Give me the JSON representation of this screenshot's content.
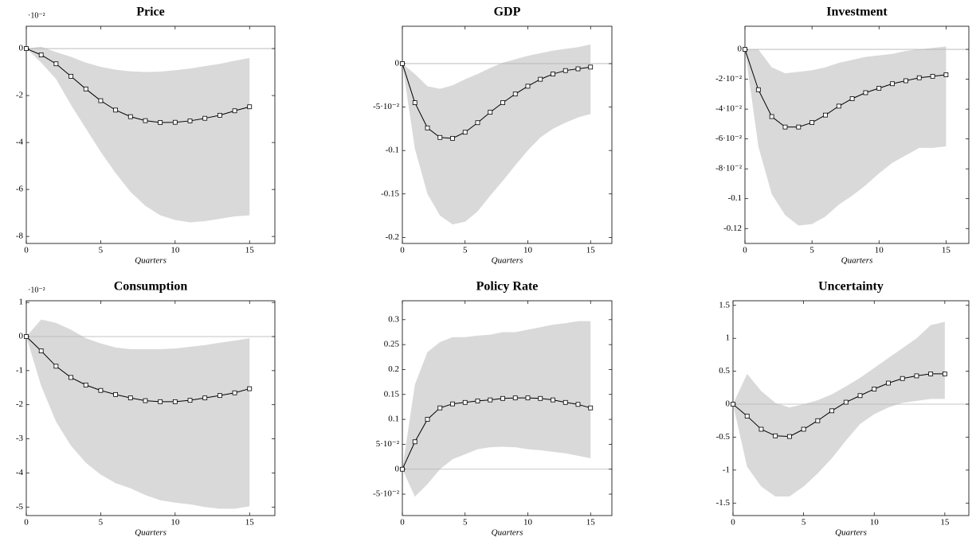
{
  "chart_data": [
    {
      "type": "line",
      "title": "Price",
      "xlabel": "Quarters",
      "y_multiplier": "·10⁻²",
      "x": [
        0,
        1,
        2,
        3,
        4,
        5,
        6,
        7,
        8,
        9,
        10,
        11,
        12,
        13,
        14,
        15
      ],
      "values": [
        0,
        -0.27,
        -0.65,
        -1.18,
        -1.72,
        -2.22,
        -2.62,
        -2.9,
        -3.07,
        -3.15,
        -3.14,
        -3.08,
        -2.97,
        -2.84,
        -2.65,
        -2.48
      ],
      "upper": [
        0,
        0.08,
        -0.15,
        -0.35,
        -0.6,
        -0.78,
        -0.9,
        -0.97,
        -1.0,
        -0.98,
        -0.92,
        -0.85,
        -0.75,
        -0.65,
        -0.52,
        -0.4
      ],
      "lower": [
        0,
        -0.6,
        -1.3,
        -2.4,
        -3.4,
        -4.4,
        -5.3,
        -6.1,
        -6.7,
        -7.1,
        -7.3,
        -7.4,
        -7.35,
        -7.25,
        -7.15,
        -7.1
      ],
      "color": "#000000",
      "band_color": "#d9d9d9",
      "reference_line": 0,
      "xlim": [
        0,
        16.7
      ],
      "xticks": [
        0,
        5,
        10,
        15
      ],
      "ylim": [
        -8.3,
        0.95
      ],
      "yticks": [
        0,
        -2,
        -4,
        -6,
        -8
      ]
    },
    {
      "type": "line",
      "title": "GDP",
      "xlabel": "Quarters",
      "x": [
        0,
        1,
        2,
        3,
        4,
        5,
        6,
        7,
        8,
        9,
        10,
        11,
        12,
        13,
        14,
        15
      ],
      "values": [
        0,
        -0.045,
        -0.074,
        -0.085,
        -0.086,
        -0.079,
        -0.068,
        -0.056,
        -0.045,
        -0.035,
        -0.026,
        -0.018,
        -0.012,
        -0.008,
        -0.006,
        -0.004
      ],
      "upper": [
        0,
        -0.012,
        -0.026,
        -0.029,
        -0.025,
        -0.018,
        -0.012,
        -0.005,
        0.001,
        0.005,
        0.009,
        0.012,
        0.015,
        0.017,
        0.019,
        0.022
      ],
      "lower": [
        0,
        -0.098,
        -0.15,
        -0.175,
        -0.185,
        -0.182,
        -0.17,
        -0.152,
        -0.135,
        -0.117,
        -0.1,
        -0.085,
        -0.075,
        -0.068,
        -0.062,
        -0.058
      ],
      "color": "#000000",
      "band_color": "#d9d9d9",
      "reference_line": 0,
      "xlim": [
        0,
        16.7
      ],
      "xticks": [
        0,
        5,
        10,
        15
      ],
      "ylim": [
        -0.207,
        0.043
      ],
      "yticks": [
        0,
        {
          "value": -0.05,
          "label": "-5·10⁻²"
        },
        -0.1,
        -0.15,
        -0.2
      ]
    },
    {
      "type": "line",
      "title": "Investment",
      "xlabel": "Quarters",
      "x": [
        0,
        1,
        2,
        3,
        4,
        5,
        6,
        7,
        8,
        9,
        10,
        11,
        12,
        13,
        14,
        15
      ],
      "values": [
        0,
        -0.027,
        -0.045,
        -0.052,
        -0.052,
        -0.049,
        -0.044,
        -0.038,
        -0.033,
        -0.029,
        -0.026,
        -0.023,
        -0.021,
        -0.019,
        -0.018,
        -0.017
      ],
      "upper": [
        0,
        0,
        -0.012,
        -0.016,
        -0.015,
        -0.014,
        -0.012,
        -0.009,
        -0.007,
        -0.005,
        -0.004,
        -0.003,
        -0.001,
        0,
        0.001,
        0.002
      ],
      "lower": [
        0,
        -0.065,
        -0.097,
        -0.111,
        -0.118,
        -0.117,
        -0.112,
        -0.104,
        -0.098,
        -0.091,
        -0.083,
        -0.076,
        -0.071,
        -0.066,
        -0.066,
        -0.065
      ],
      "color": "#000000",
      "band_color": "#d9d9d9",
      "reference_line": 0,
      "xlim": [
        0,
        16.7
      ],
      "xticks": [
        0,
        5,
        10,
        15
      ],
      "ylim": [
        -0.13,
        0.0155
      ],
      "yticks": [
        0,
        {
          "value": -0.02,
          "label": "-2·10⁻²"
        },
        {
          "value": -0.04,
          "label": "-4·10⁻²"
        },
        {
          "value": -0.06,
          "label": "-6·10⁻²"
        },
        {
          "value": -0.08,
          "label": "-8·10⁻²"
        },
        -0.1,
        -0.12
      ]
    },
    {
      "type": "line",
      "title": "Consumption",
      "xlabel": "Quarters",
      "y_multiplier": "·10⁻²",
      "x": [
        0,
        1,
        2,
        3,
        4,
        5,
        6,
        7,
        8,
        9,
        10,
        11,
        12,
        13,
        14,
        15
      ],
      "values": [
        0,
        -0.42,
        -0.87,
        -1.2,
        -1.42,
        -1.58,
        -1.7,
        -1.8,
        -1.88,
        -1.91,
        -1.91,
        -1.87,
        -1.8,
        -1.73,
        -1.65,
        -1.53
      ],
      "upper": [
        0,
        0.5,
        0.4,
        0.2,
        -0.05,
        -0.2,
        -0.32,
        -0.37,
        -0.37,
        -0.37,
        -0.35,
        -0.3,
        -0.25,
        -0.18,
        -0.12,
        -0.05
      ],
      "lower": [
        0,
        -1.45,
        -2.5,
        -3.2,
        -3.7,
        -4.05,
        -4.3,
        -4.45,
        -4.65,
        -4.8,
        -4.87,
        -4.92,
        -5.0,
        -5.05,
        -5.05,
        -4.98
      ],
      "color": "#000000",
      "band_color": "#d9d9d9",
      "reference_line": 0,
      "xlim": [
        0,
        16.7
      ],
      "xticks": [
        0,
        5,
        10,
        15
      ],
      "ylim": [
        -5.25,
        1.05
      ],
      "yticks": [
        1,
        0,
        -1,
        -2,
        -3,
        -4,
        -5
      ]
    },
    {
      "type": "line",
      "title": "Policy Rate",
      "xlabel": "Quarters",
      "x": [
        0,
        1,
        2,
        3,
        4,
        5,
        6,
        7,
        8,
        9,
        10,
        11,
        12,
        13,
        14,
        15
      ],
      "values": [
        0,
        0.055,
        0.1,
        0.123,
        0.131,
        0.134,
        0.137,
        0.139,
        0.142,
        0.143,
        0.143,
        0.142,
        0.139,
        0.134,
        0.13,
        0.123
      ],
      "upper": [
        0,
        0.17,
        0.235,
        0.255,
        0.265,
        0.265,
        0.268,
        0.27,
        0.275,
        0.275,
        0.28,
        0.285,
        0.29,
        0.293,
        0.297,
        0.297
      ],
      "lower": [
        0,
        -0.055,
        -0.03,
        0,
        0.02,
        0.03,
        0.04,
        0.044,
        0.045,
        0.044,
        0.04,
        0.038,
        0.035,
        0.032,
        0.027,
        0.022
      ],
      "color": "#000000",
      "band_color": "#d9d9d9",
      "reference_line": 0,
      "xlim": [
        0,
        16.7
      ],
      "xticks": [
        0,
        5,
        10,
        15
      ],
      "ylim": [
        -0.093,
        0.338
      ],
      "yticks": [
        {
          "value": -0.05,
          "label": "-5·10⁻²"
        },
        0,
        {
          "value": 0.05,
          "label": "5·10⁻²"
        },
        0.1,
        0.15,
        0.2,
        0.25,
        0.3
      ]
    },
    {
      "type": "line",
      "title": "Uncertainty",
      "xlabel": "Quarters",
      "x": [
        0,
        1,
        2,
        3,
        4,
        5,
        6,
        7,
        8,
        9,
        10,
        11,
        12,
        13,
        14,
        15
      ],
      "values": [
        0,
        -0.18,
        -0.38,
        -0.48,
        -0.49,
        -0.38,
        -0.25,
        -0.1,
        0.03,
        0.13,
        0.23,
        0.32,
        0.39,
        0.43,
        0.46,
        0.46
      ],
      "upper": [
        0,
        0.46,
        0.2,
        0.02,
        -0.05,
        0,
        0.06,
        0.15,
        0.27,
        0.4,
        0.55,
        0.7,
        0.85,
        1.0,
        1.2,
        1.25
      ],
      "lower": [
        0,
        -0.95,
        -1.25,
        -1.4,
        -1.4,
        -1.25,
        -1.05,
        -0.82,
        -0.55,
        -0.3,
        -0.15,
        -0.05,
        0.02,
        0.05,
        0.08,
        0.08
      ],
      "color": "#000000",
      "band_color": "#d9d9d9",
      "reference_line": 0,
      "xlim": [
        0,
        16.7
      ],
      "xticks": [
        0,
        5,
        10,
        15
      ],
      "ylim": [
        -1.69,
        1.57
      ],
      "yticks": [
        1.5,
        1,
        0.5,
        0,
        -0.5,
        -1,
        -1.5
      ]
    }
  ]
}
